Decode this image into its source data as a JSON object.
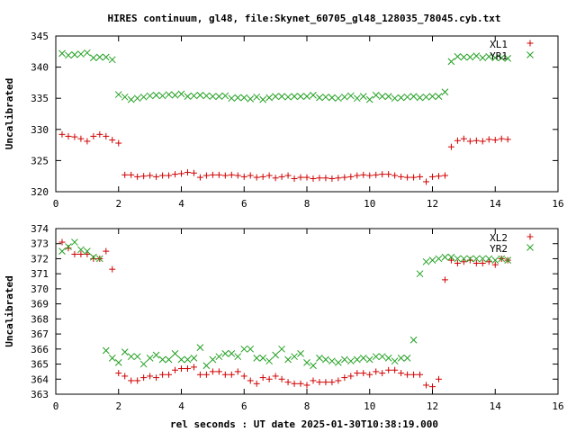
{
  "chart_data": {
    "title": "HIRES continuum, gl48, file:Skynet_60705_gl48_128035_78045.cyb.txt",
    "xlabel": "rel seconds : UT date 2025-01-30T10:38:19.000",
    "panels": [
      {
        "type": "scatter",
        "ylabel": "Uncalibrated",
        "xlim": [
          0,
          16
        ],
        "ylim": [
          320,
          345
        ],
        "xticks": [
          0,
          2,
          4,
          6,
          8,
          10,
          12,
          14,
          16
        ],
        "yticks": [
          320,
          325,
          330,
          335,
          340,
          345
        ],
        "series": [
          {
            "name": "XL1",
            "marker": "plus",
            "color": "#d00000",
            "x": [
              0.2,
              0.4,
              0.6,
              0.8,
              1.0,
              1.2,
              1.4,
              1.6,
              1.8,
              2.0,
              2.2,
              2.4,
              2.6,
              2.8,
              3.0,
              3.2,
              3.4,
              3.6,
              3.8,
              4.0,
              4.2,
              4.4,
              4.6,
              4.8,
              5.0,
              5.2,
              5.4,
              5.6,
              5.8,
              6.0,
              6.2,
              6.4,
              6.6,
              6.8,
              7.0,
              7.2,
              7.4,
              7.6,
              7.8,
              8.0,
              8.2,
              8.4,
              8.6,
              8.8,
              9.0,
              9.2,
              9.4,
              9.6,
              9.8,
              10.0,
              10.2,
              10.4,
              10.6,
              10.8,
              11.0,
              11.2,
              11.4,
              11.6,
              11.8,
              12.0,
              12.2,
              12.4,
              12.6,
              12.8,
              13.0,
              13.2,
              13.4,
              13.6,
              13.8,
              14.0,
              14.2,
              14.4
            ],
            "y": [
              329.2,
              328.9,
              328.8,
              328.5,
              328.1,
              328.9,
              329.2,
              328.9,
              328.3,
              327.8,
              322.7,
              322.7,
              322.4,
              322.5,
              322.6,
              322.4,
              322.6,
              322.6,
              322.8,
              322.9,
              323.1,
              323.0,
              322.3,
              322.6,
              322.7,
              322.7,
              322.6,
              322.7,
              322.6,
              322.4,
              322.6,
              322.3,
              322.4,
              322.6,
              322.2,
              322.4,
              322.6,
              322.1,
              322.3,
              322.3,
              322.1,
              322.2,
              322.2,
              322.1,
              322.2,
              322.3,
              322.4,
              322.6,
              322.7,
              322.6,
              322.7,
              322.8,
              322.8,
              322.6,
              322.4,
              322.3,
              322.3,
              322.4,
              321.6,
              322.4,
              322.5,
              322.6,
              327.2,
              328.2,
              328.5,
              328.1,
              328.2,
              328.1,
              328.4,
              328.3,
              328.5,
              328.4
            ],
            "note_x_order": "points plotted at their x values"
          },
          {
            "name": "YR1",
            "marker": "cross",
            "color": "#22a022",
            "x": [
              0.2,
              0.4,
              0.6,
              0.8,
              1.0,
              1.2,
              1.4,
              1.6,
              1.8,
              2.0,
              2.2,
              2.4,
              2.6,
              2.8,
              3.0,
              3.2,
              3.4,
              3.6,
              3.8,
              4.0,
              4.2,
              4.4,
              4.6,
              4.8,
              5.0,
              5.2,
              5.4,
              5.6,
              5.8,
              6.0,
              6.2,
              6.4,
              6.6,
              6.8,
              7.0,
              7.2,
              7.4,
              7.6,
              7.8,
              8.0,
              8.2,
              8.4,
              8.6,
              8.8,
              9.0,
              9.2,
              9.4,
              9.6,
              9.8,
              10.0,
              10.2,
              10.4,
              10.6,
              10.8,
              11.0,
              11.2,
              11.4,
              11.6,
              11.8,
              12.0,
              12.2,
              12.4,
              12.6,
              12.8,
              13.0,
              13.2,
              13.4,
              13.6,
              13.8,
              14.0,
              14.2,
              14.4
            ],
            "y": [
              342.2,
              341.9,
              342.0,
              342.1,
              342.3,
              341.5,
              341.6,
              341.6,
              341.2,
              335.6,
              335.2,
              334.8,
              335.0,
              335.2,
              335.4,
              335.5,
              335.4,
              335.6,
              335.5,
              335.7,
              335.3,
              335.4,
              335.5,
              335.4,
              335.3,
              335.3,
              335.4,
              335.0,
              335.1,
              335.1,
              334.9,
              335.2,
              334.8,
              335.1,
              335.3,
              335.3,
              335.2,
              335.3,
              335.3,
              335.3,
              335.5,
              335.1,
              335.2,
              335.1,
              335.0,
              335.2,
              335.4,
              335.0,
              335.3,
              334.8,
              335.5,
              335.3,
              335.3,
              335.0,
              335.1,
              335.2,
              335.3,
              335.1,
              335.2,
              335.3,
              335.3,
              336.0,
              340.9,
              341.7,
              341.6,
              341.6,
              341.8,
              341.5,
              341.7,
              341.5,
              341.5,
              341.4
            ]
          }
        ]
      },
      {
        "type": "scatter",
        "ylabel": "Uncalibrated",
        "xlim": [
          0,
          16
        ],
        "ylim": [
          363,
          374
        ],
        "xticks": [
          0,
          2,
          4,
          6,
          8,
          10,
          12,
          14,
          16
        ],
        "yticks": [
          363,
          364,
          365,
          366,
          367,
          368,
          369,
          370,
          371,
          372,
          373,
          374
        ],
        "series": [
          {
            "name": "XL2",
            "marker": "plus",
            "color": "#d00000",
            "x": [
              0.2,
              0.4,
              0.6,
              0.8,
              1.0,
              1.2,
              1.4,
              1.6,
              1.8,
              2.0,
              2.2,
              2.4,
              2.6,
              2.8,
              3.0,
              3.2,
              3.4,
              3.6,
              3.8,
              4.0,
              4.2,
              4.4,
              4.6,
              4.8,
              5.0,
              5.2,
              5.4,
              5.6,
              5.8,
              6.0,
              6.2,
              6.4,
              6.6,
              6.8,
              7.0,
              7.2,
              7.4,
              7.6,
              7.8,
              8.0,
              8.2,
              8.4,
              8.6,
              8.8,
              9.0,
              9.2,
              9.4,
              9.6,
              9.8,
              10.0,
              10.2,
              10.4,
              10.6,
              10.8,
              11.0,
              11.2,
              11.4,
              11.6,
              11.8,
              12.0,
              12.2,
              12.4,
              12.6,
              12.8,
              13.0,
              13.2,
              13.4,
              13.6,
              13.8,
              14.0,
              14.2,
              14.4
            ],
            "y": [
              373.1,
              372.7,
              372.3,
              372.3,
              372.3,
              372.0,
              372.0,
              372.5,
              371.3,
              364.4,
              364.2,
              363.9,
              363.9,
              364.1,
              364.2,
              364.1,
              364.3,
              364.3,
              364.6,
              364.7,
              364.7,
              364.8,
              364.3,
              364.3,
              364.5,
              364.5,
              364.3,
              364.3,
              364.5,
              364.2,
              363.9,
              363.7,
              364.1,
              364.0,
              364.2,
              364.0,
              363.8,
              363.7,
              363.7,
              363.6,
              363.9,
              363.8,
              363.8,
              363.8,
              363.9,
              364.1,
              364.2,
              364.4,
              364.4,
              364.3,
              364.5,
              364.4,
              364.6,
              364.6,
              364.4,
              364.3,
              364.3,
              364.3,
              363.6,
              363.5,
              364.0,
              370.6,
              371.9,
              371.7,
              371.8,
              371.9,
              371.7,
              371.7,
              371.8,
              371.6,
              372.0,
              371.9
            ]
          },
          {
            "name": "YR2",
            "marker": "cross",
            "color": "#22a022",
            "x": [
              0.2,
              0.4,
              0.6,
              0.8,
              1.0,
              1.2,
              1.4,
              1.6,
              1.8,
              2.0,
              2.2,
              2.4,
              2.6,
              2.8,
              3.0,
              3.2,
              3.4,
              3.6,
              3.8,
              4.0,
              4.2,
              4.4,
              4.6,
              4.8,
              5.0,
              5.2,
              5.4,
              5.6,
              5.8,
              6.0,
              6.2,
              6.4,
              6.6,
              6.8,
              7.0,
              7.2,
              7.4,
              7.6,
              7.8,
              8.0,
              8.2,
              8.4,
              8.6,
              8.8,
              9.0,
              9.2,
              9.4,
              9.6,
              9.8,
              10.0,
              10.2,
              10.4,
              10.6,
              10.8,
              11.0,
              11.2,
              11.4,
              11.6,
              11.8,
              12.0,
              12.2,
              12.4,
              12.6,
              12.8,
              13.0,
              13.2,
              13.4,
              13.6,
              13.8,
              14.0,
              14.2,
              14.4
            ],
            "y": [
              372.5,
              372.8,
              373.1,
              372.6,
              372.5,
              372.1,
              372.0,
              365.9,
              365.4,
              365.1,
              365.8,
              365.5,
              365.5,
              365.0,
              365.4,
              365.6,
              365.3,
              365.3,
              365.7,
              365.3,
              365.3,
              365.4,
              366.1,
              364.9,
              365.3,
              365.5,
              365.7,
              365.7,
              365.5,
              366.0,
              366.0,
              365.4,
              365.4,
              365.2,
              365.6,
              366.0,
              365.3,
              365.5,
              365.7,
              365.1,
              364.9,
              365.4,
              365.3,
              365.2,
              365.1,
              365.3,
              365.2,
              365.3,
              365.4,
              365.3,
              365.5,
              365.5,
              365.4,
              365.2,
              365.4,
              365.4,
              366.6,
              371.0,
              371.8,
              371.9,
              372.0,
              372.1,
              372.1,
              372.0,
              372.0,
              372.0,
              372.0,
              372.0,
              372.0,
              371.9,
              372.0,
              371.9
            ]
          }
        ]
      }
    ]
  }
}
